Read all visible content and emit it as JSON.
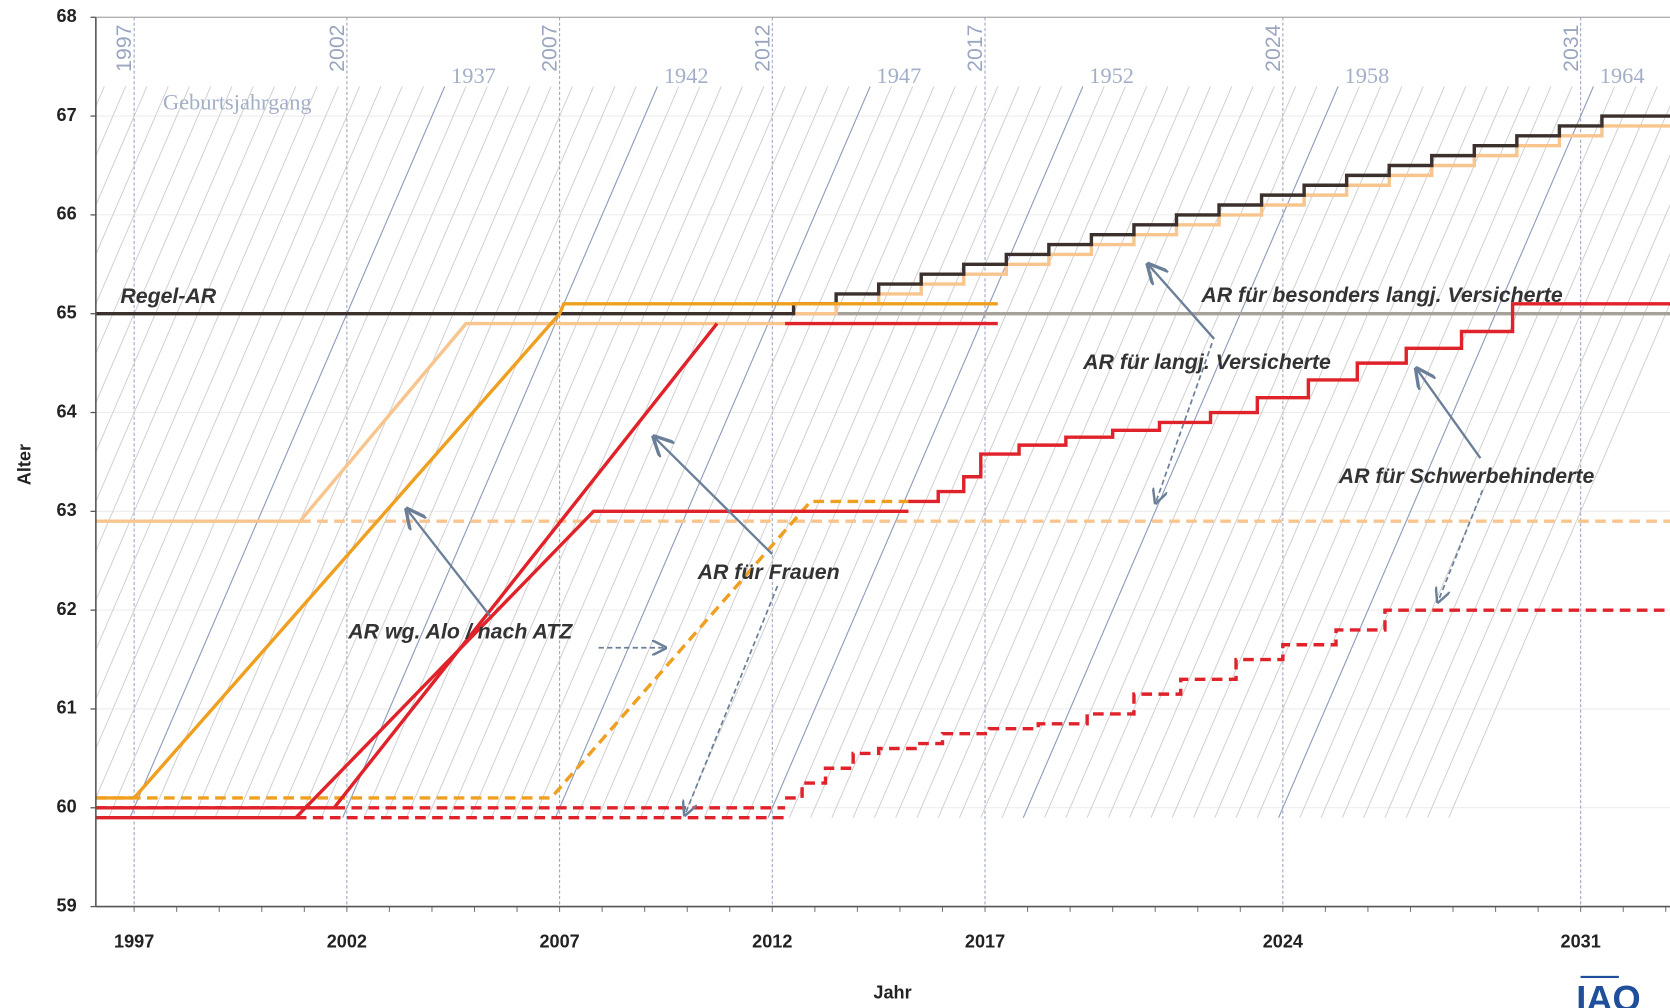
{
  "chart_data": {
    "type": "line",
    "x_label": "Jahr",
    "y_label": "Alter",
    "xlim": [
      1996.1,
      2033.1
    ],
    "xticks": [
      1997,
      2002,
      2007,
      2012,
      2017,
      2024,
      2031
    ],
    "ylim": [
      59,
      68
    ],
    "yticks": [
      59,
      60,
      61,
      62,
      63,
      64,
      65,
      66,
      67,
      68
    ],
    "grid": true,
    "cohorts": {
      "label": "Geburtsjahrgang",
      "ticks": [
        1937,
        1942,
        1947,
        1952,
        1958,
        1964
      ]
    },
    "annotations": [
      "Regel-AR",
      "AR für besonders langj. Versicherte",
      "AR für langj. Versicherte",
      "AR für Schwerbehinderte",
      "AR für Frauen",
      "AR wg. Alo / nach ATZ"
    ],
    "logo": "IAQ",
    "series": [
      {
        "color": "#a7a19b",
        "x": [
          2012.5,
          2033.1
        ],
        "values": [
          65,
          65
        ]
      },
      {
        "color": "#f8c58e",
        "x": [
          1996.1,
          2000.9,
          2004.8,
          2012.5
        ],
        "values": [
          62.9,
          62.9,
          64.9,
          64.9
        ]
      },
      {
        "color": "#f8c58e",
        "dash": true,
        "x": [
          2000.9,
          2033.1
        ],
        "values": [
          62.9,
          62.9
        ]
      },
      {
        "color": "#f8c58e",
        "step": true,
        "x": [
          2012.5,
          2013.5,
          2014.5,
          2015.5,
          2016.5,
          2017.5,
          2018.5,
          2019.5,
          2020.5,
          2021.5,
          2022.5,
          2023.5,
          2024.5,
          2025.5,
          2026.5,
          2027.5,
          2028.5,
          2029.5,
          2030.5,
          2031.5,
          2033.1
        ],
        "values": [
          65.0,
          65.1,
          65.2,
          65.3,
          65.4,
          65.5,
          65.6,
          65.7,
          65.8,
          65.9,
          66.0,
          66.1,
          66.2,
          66.3,
          66.4,
          66.5,
          66.6,
          66.7,
          66.8,
          66.9,
          66.9
        ]
      },
      {
        "color": "#3b302c",
        "step": true,
        "x": [
          1996.1,
          2012.5,
          2013.5,
          2014.5,
          2015.5,
          2016.5,
          2017.5,
          2018.5,
          2019.5,
          2020.5,
          2021.5,
          2022.5,
          2023.5,
          2024.5,
          2025.5,
          2026.5,
          2027.5,
          2028.5,
          2029.5,
          2030.5,
          2031.5,
          2033.1
        ],
        "values": [
          65,
          65.1,
          65.2,
          65.3,
          65.4,
          65.5,
          65.6,
          65.7,
          65.8,
          65.9,
          66.0,
          66.1,
          66.2,
          66.3,
          66.4,
          66.5,
          66.6,
          66.7,
          66.8,
          66.9,
          67.0,
          67.0
        ]
      },
      {
        "color": "#f0a020",
        "x": [
          1996.1,
          1997,
          2007,
          2007.1,
          2017.3
        ],
        "values": [
          60.1,
          60.1,
          65,
          65.1,
          65.1
        ]
      },
      {
        "color": "#f0a020",
        "dash": true,
        "x": [
          1996.1,
          2006.8,
          2012.9,
          2015.3
        ],
        "values": [
          60.1,
          60.1,
          63.1,
          63.1
        ]
      },
      {
        "color": "#e0222a",
        "x": [
          1996.1,
          2001.7,
          2010.7
        ],
        "values": [
          60,
          60,
          64.9
        ]
      },
      {
        "color": "#e0222a",
        "x": [
          2012.3,
          2017.3
        ],
        "values": [
          64.9,
          64.9
        ]
      },
      {
        "color": "#e0222a",
        "x": [
          1996.1,
          2000.8,
          2007.8,
          2015.2
        ],
        "values": [
          59.9,
          59.9,
          63,
          63
        ]
      },
      {
        "color": "#e0222a",
        "step": true,
        "x": [
          2015.2,
          2015.9,
          2016.5,
          2016.9,
          2017.8,
          2018.9,
          2020.0,
          2021.1,
          2022.3,
          2023.4,
          2024.6,
          2025.75,
          2026.9,
          2028.2,
          2029.4,
          2033.1
        ],
        "values": [
          63.1,
          63.2,
          63.35,
          63.58,
          63.67,
          63.75,
          63.82,
          63.9,
          64.0,
          64.15,
          64.33,
          64.5,
          64.65,
          64.82,
          65.1,
          65.1
        ]
      },
      {
        "color": "#e0222a",
        "dash": true,
        "x": [
          1996.1,
          2012.3
        ],
        "values": [
          60,
          60
        ]
      },
      {
        "color": "#e0222a",
        "dash": true,
        "x": [
          2000.8,
          2012.3
        ],
        "values": [
          59.9,
          59.9
        ]
      },
      {
        "color": "#e0222a",
        "dash": true,
        "step": true,
        "x": [
          2012.3,
          2012.7,
          2013.25,
          2013.9,
          2014.5,
          2015.4,
          2016,
          2017.1,
          2018.25,
          2019.4,
          2020.5,
          2021.6,
          2022.9,
          2024,
          2025.25,
          2026.4,
          2033.1
        ],
        "values": [
          60.1,
          60.25,
          60.4,
          60.55,
          60.6,
          60.65,
          60.75,
          60.8,
          60.85,
          60.95,
          61.15,
          61.3,
          61.5,
          61.65,
          61.8,
          62,
          62
        ]
      }
    ]
  }
}
